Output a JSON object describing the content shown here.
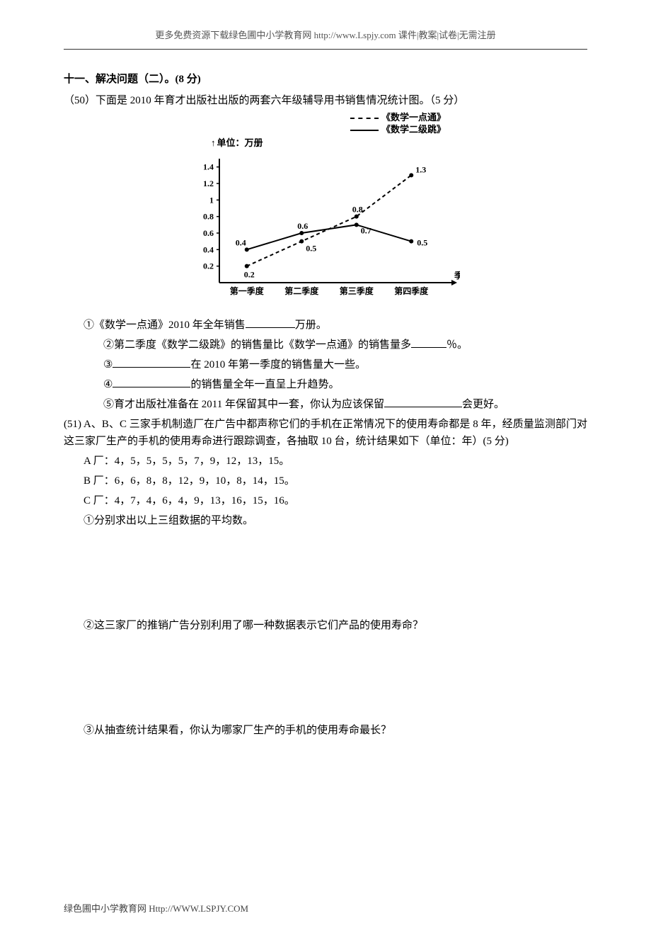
{
  "header": {
    "text": "更多免费资源下载绿色圃中小学教育网 http://www.Lspjy.com  课件|教案|试卷|无需注册"
  },
  "section": {
    "title": "十一、解决问题（二）。(8 分)"
  },
  "q50": {
    "intro": "（50）下面是 2010 年育才出版社出版的两套六年级辅导用书销售情况统计图。（5 分）",
    "chart": {
      "type": "line",
      "legend": {
        "dashed": "《数学一点通》",
        "solid": "《数学二级跳》"
      },
      "ylabel": "单位：万册",
      "xlabel_arrow": "季度",
      "categories": [
        "第一季度",
        "第二季度",
        "第三季度",
        "第四季度"
      ],
      "yticks": [
        0.2,
        0.4,
        0.6,
        0.8,
        1.0,
        1.2,
        1.4
      ],
      "ylim": [
        0,
        1.5
      ],
      "series_dashed": {
        "values": [
          0.2,
          0.5,
          0.8,
          1.3
        ],
        "labels": [
          "0.2",
          "0.5",
          "0.8",
          "1.3"
        ],
        "color": "#000000",
        "dash": "5,4",
        "marker": "dot"
      },
      "series_solid": {
        "values": [
          0.4,
          0.6,
          0.7,
          0.5
        ],
        "labels": [
          "0.4",
          "0.6",
          "0.7",
          "0.5"
        ],
        "color": "#000000",
        "dash": "",
        "marker": "dot"
      },
      "line_width": 2,
      "marker_radius": 3,
      "axis_color": "#000000",
      "background_color": "#ffffff",
      "title_fontsize": 13,
      "tick_fontsize": 12,
      "label_fontsize": 12
    },
    "sub1_pre": "①《数学一点通》2010 年全年销售",
    "sub1_post": "万册。",
    "sub2_pre": "②第二季度《数学二级跳》的销售量比《数学一点通》的销售量多",
    "sub2_post": "％。",
    "sub3_pre": "③",
    "sub3_post": "在 2010 年第一季度的销售量大一些。",
    "sub4_pre": "④",
    "sub4_post": "的销售量全年一直呈上升趋势。",
    "sub5_pre": "⑤育才出版社准备在 2011 年保留其中一套，你认为应该保留",
    "sub5_post": "会更好。"
  },
  "q51": {
    "intro": "(51) A、B、C 三家手机制造厂在广告中都声称它们的手机在正常情况下的使用寿命都是 8 年，经质量监测部门对这三家厂生产的手机的使用寿命进行跟踪调查，各抽取 10 台，统计结果如下（单位：年）(5 分)",
    "rowA": "A 厂：4，5，5，5，5，7，9，12，13，15。",
    "rowB": "B 厂：6，6，8，8，12，9，10，8，14，15。",
    "rowC": "C 厂：4，7，4，6，4，9，13，16，15，16。",
    "sub1": "①分别求出以上三组数据的平均数。",
    "sub2": "②这三家厂的推销广告分别利用了哪一种数据表示它们产品的使用寿命？",
    "sub3": "③从抽查统计结果看，你认为哪家厂生产的手机的使用寿命最长？"
  },
  "footer": {
    "text": "绿色圃中小学教育网 Http://WWW.LSPJY.COM"
  }
}
